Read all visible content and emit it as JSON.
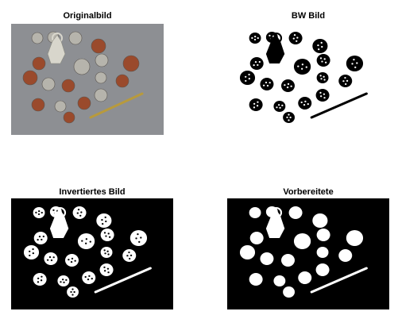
{
  "figure": {
    "panels": [
      {
        "title": "Originalbild",
        "kind": "photo"
      },
      {
        "title": "BW Bild",
        "kind": "bw"
      },
      {
        "title": "Invertiertes Bild",
        "kind": "inverted"
      },
      {
        "title": "Vorbereitete",
        "kind": "prepared"
      }
    ]
  },
  "colors": {
    "photo_background": "#8d8f93",
    "copper": "#9a4a2c",
    "silver": "#b6b4ac",
    "gold": "#b89a3c",
    "black": "#000000",
    "white": "#ffffff"
  }
}
